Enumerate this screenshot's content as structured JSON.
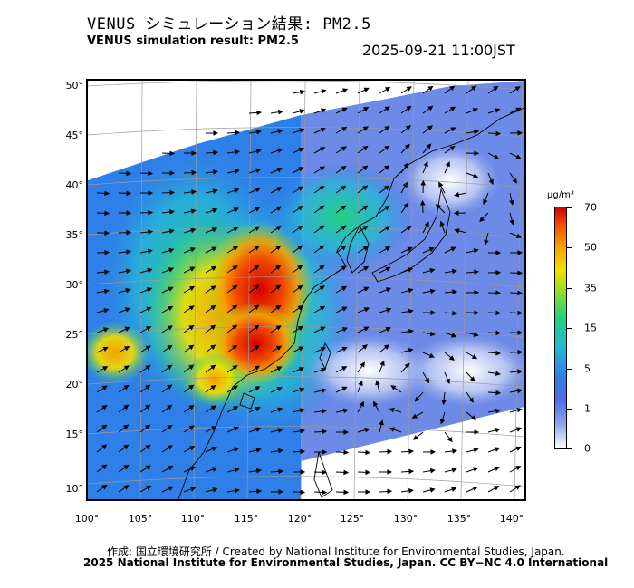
{
  "header": {
    "title_ja": "VENUS シミュレーション結果: PM2.5",
    "title_en": "VENUS simulation result: PM2.5",
    "timestamp": "2025-09-21 11:00JST"
  },
  "axes": {
    "lat_labels": [
      "50°",
      "45°",
      "40°",
      "35°",
      "30°",
      "25°",
      "20°",
      "15°",
      "10°"
    ],
    "lon_labels": [
      "100°",
      "105°",
      "110°",
      "115°",
      "120°",
      "125°",
      "130°",
      "135°",
      "140°"
    ]
  },
  "colorbar": {
    "unit": "μg/m³",
    "tick_labels": [
      "70",
      "50",
      "35",
      "15",
      "5",
      "1",
      "0"
    ],
    "colors": [
      "#ffffff",
      "#8fa6ef",
      "#4f6fe2",
      "#2f7fe8",
      "#27b7d6",
      "#1fd27f",
      "#9be024",
      "#f2e000",
      "#f5a000",
      "#f24c00",
      "#d40000"
    ]
  },
  "footer": {
    "credit_line_1": "作成: 国立環境研究所 / Created by National Institute for Environmental Studies, Japan.",
    "credit_line_2": "2025 National Institute for Environmental Studies, Japan. CC BY−NC 4.0 International"
  }
}
